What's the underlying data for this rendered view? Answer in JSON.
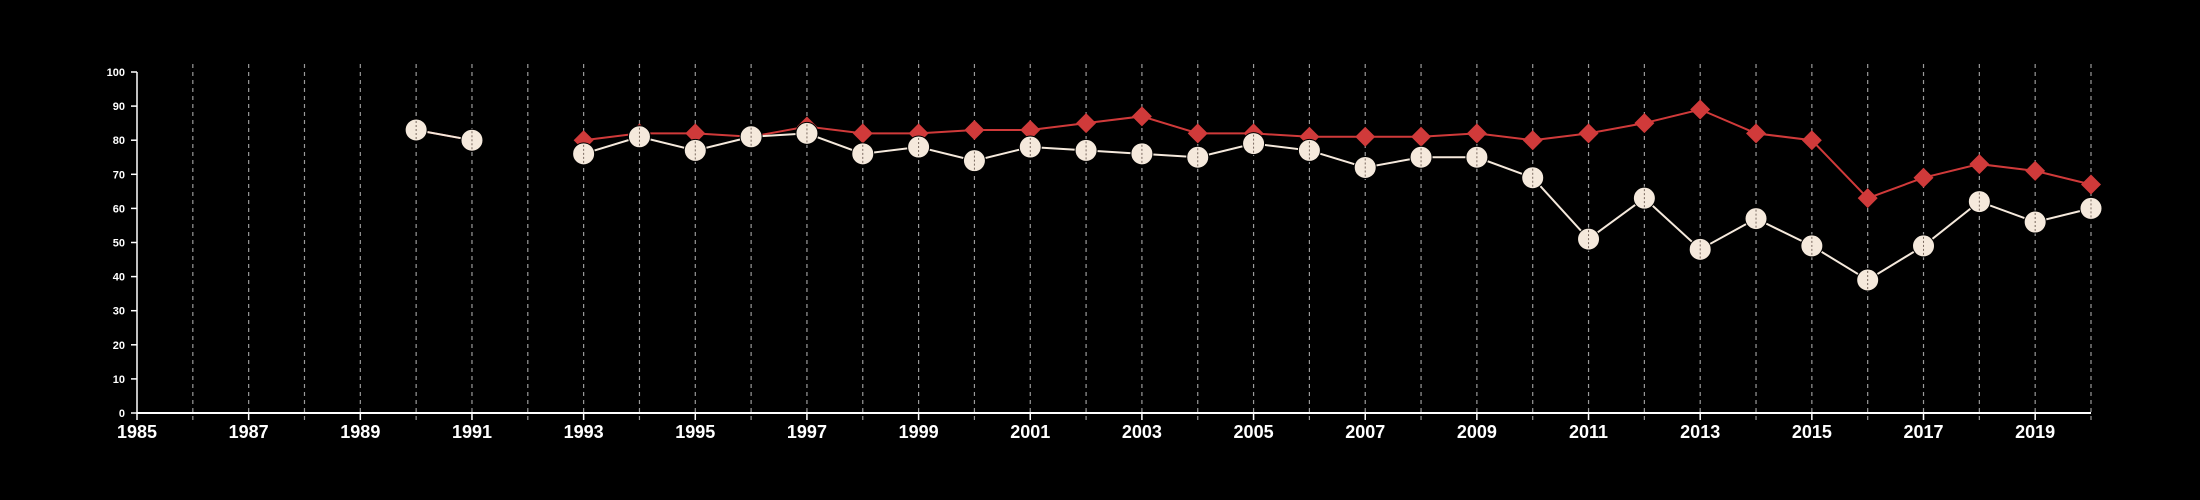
{
  "chart_data": {
    "type": "line",
    "title": "",
    "xlabel": "",
    "ylabel": "",
    "xlim": [
      1985,
      2020
    ],
    "ylim": [
      0,
      100
    ],
    "x_ticks": [
      "1985",
      "1987",
      "1989",
      "1991",
      "1993",
      "1995",
      "1997",
      "1999",
      "2001",
      "2003",
      "2005",
      "2007",
      "2009",
      "2011",
      "2013",
      "2015",
      "2017",
      "2019"
    ],
    "y_ticks": [
      "0",
      "10",
      "20",
      "30",
      "40",
      "50",
      "60",
      "70",
      "80",
      "90",
      "100"
    ],
    "vertical_grid": "dashed, every year",
    "horizontal_grid": false,
    "legend": "none",
    "series": [
      {
        "color": "#d03a3a",
        "marker": "diamond",
        "points": [
          [
            1990,
            83
          ],
          [
            1991,
            80
          ],
          [
            1993,
            80
          ],
          [
            1994,
            82
          ],
          [
            1995,
            82
          ],
          [
            1996,
            81
          ],
          [
            1997,
            84
          ],
          [
            1998,
            82
          ],
          [
            1999,
            82
          ],
          [
            2000,
            83
          ],
          [
            2001,
            83
          ],
          [
            2002,
            85
          ],
          [
            2003,
            87
          ],
          [
            2004,
            82
          ],
          [
            2005,
            82
          ],
          [
            2006,
            81
          ],
          [
            2007,
            81
          ],
          [
            2008,
            81
          ],
          [
            2009,
            82
          ],
          [
            2010,
            80
          ],
          [
            2011,
            82
          ],
          [
            2012,
            85
          ],
          [
            2013,
            89
          ],
          [
            2014,
            82
          ],
          [
            2015,
            80
          ],
          [
            2016,
            63
          ],
          [
            2017,
            69
          ],
          [
            2018,
            73
          ],
          [
            2019,
            71
          ],
          [
            2020,
            67
          ]
        ]
      },
      {
        "color": "#f5e9dc",
        "marker": "circle",
        "points": [
          [
            1990,
            83
          ],
          [
            1991,
            80
          ],
          [
            1993,
            76
          ],
          [
            1994,
            81
          ],
          [
            1995,
            77
          ],
          [
            1996,
            81
          ],
          [
            1997,
            82
          ],
          [
            1998,
            76
          ],
          [
            1999,
            78
          ],
          [
            2000,
            74
          ],
          [
            2001,
            78
          ],
          [
            2002,
            77
          ],
          [
            2003,
            76
          ],
          [
            2004,
            75
          ],
          [
            2005,
            79
          ],
          [
            2006,
            77
          ],
          [
            2007,
            72
          ],
          [
            2008,
            75
          ],
          [
            2009,
            75
          ],
          [
            2010,
            69
          ],
          [
            2011,
            51
          ],
          [
            2012,
            63
          ],
          [
            2013,
            48
          ],
          [
            2014,
            57
          ],
          [
            2015,
            49
          ],
          [
            2016,
            39
          ],
          [
            2017,
            49
          ],
          [
            2018,
            62
          ],
          [
            2019,
            56
          ],
          [
            2020,
            60
          ]
        ]
      }
    ]
  }
}
